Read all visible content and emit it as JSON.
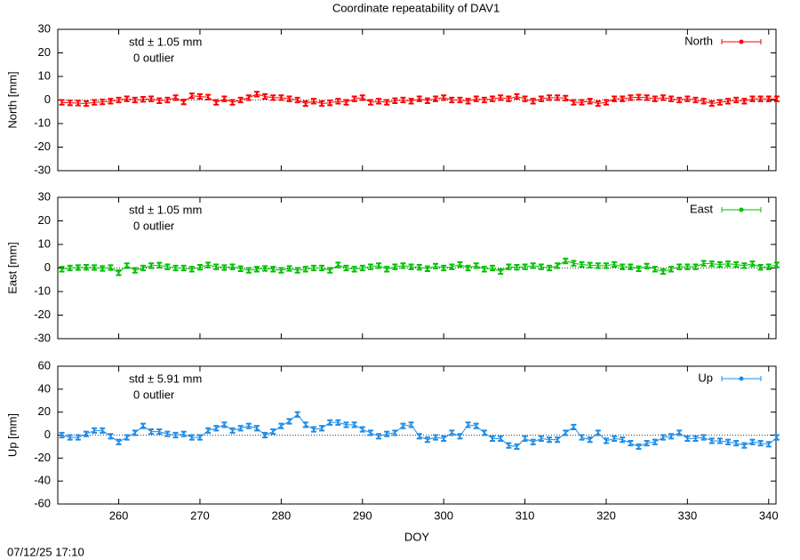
{
  "title": "Coordinate repeatability of DAV1",
  "timestamp": "07/12/25 17:10",
  "chart_data": [
    {
      "type": "line",
      "ylabel": "North [mm]",
      "std_text": "std ± 1.05 mm",
      "outlier_text": "0 outlier",
      "xlim": [
        252.5,
        340.9
      ],
      "xticks": [
        260,
        270,
        280,
        290,
        300,
        310,
        320,
        330,
        340
      ],
      "ylim": [
        -30,
        30
      ],
      "yticks": [
        -30,
        -20,
        -10,
        0,
        10,
        20,
        30
      ],
      "x": [
        253,
        254,
        255,
        256,
        257,
        258,
        259,
        260,
        261,
        262,
        263,
        264,
        265,
        266,
        267,
        268,
        269,
        270,
        271,
        272,
        273,
        274,
        275,
        276,
        277,
        278,
        279,
        280,
        281,
        282,
        283,
        284,
        285,
        286,
        287,
        288,
        289,
        290,
        291,
        292,
        293,
        294,
        295,
        296,
        297,
        298,
        299,
        300,
        301,
        302,
        303,
        304,
        305,
        306,
        307,
        308,
        309,
        310,
        311,
        312,
        313,
        314,
        315,
        316,
        317,
        318,
        319,
        320,
        321,
        322,
        323,
        324,
        325,
        326,
        327,
        328,
        329,
        330,
        331,
        332,
        333,
        334,
        335,
        336,
        337,
        338,
        339,
        340,
        341
      ],
      "series": [
        {
          "name": "North",
          "color": "#ff0000",
          "values": [
            -1,
            -1.2,
            -1.3,
            -1.5,
            -1,
            -0.8,
            -0.5,
            0,
            0.5,
            0,
            0.3,
            0.5,
            -0.3,
            0,
            1,
            -0.8,
            1.8,
            1.5,
            1.2,
            -1,
            0.5,
            -1,
            0,
            1,
            2.5,
            1.5,
            1,
            1,
            0.5,
            0,
            -1.5,
            -0.5,
            -1.5,
            -1.2,
            -0.5,
            -1,
            0.5,
            1,
            -1,
            -0.5,
            -1,
            -0.3,
            0,
            -0.5,
            0.5,
            -0.3,
            0.5,
            1,
            0,
            0,
            -0.5,
            0.5,
            0,
            0.5,
            1,
            0.5,
            1.5,
            0.5,
            -0.5,
            0.5,
            1,
            1,
            0.8,
            -1,
            -1,
            -0.5,
            -1.5,
            -1,
            0.5,
            0.5,
            1,
            1.2,
            1,
            0.5,
            1,
            0.5,
            0,
            0.5,
            0,
            -0.5,
            -1.5,
            -1,
            -0.5,
            0,
            -0.5,
            0.5,
            0.5,
            0.5,
            0.5
          ],
          "errors": [
            1,
            1,
            1,
            1,
            1,
            1,
            1,
            1,
            1,
            1,
            1,
            1,
            1,
            1,
            1,
            1,
            1,
            1,
            1,
            1,
            1,
            1,
            1,
            1,
            1,
            1,
            1,
            1,
            1,
            1,
            1,
            1,
            1,
            1,
            1,
            1,
            1,
            1,
            1,
            1,
            1,
            1,
            1,
            1,
            1,
            1,
            1,
            1,
            1,
            1,
            1,
            1,
            1,
            1,
            1,
            1,
            1,
            1,
            1,
            1,
            1,
            1,
            1,
            1,
            1,
            1,
            1,
            1,
            1,
            1,
            1,
            1,
            1,
            1,
            1,
            1,
            1,
            1,
            1,
            1,
            1,
            1,
            1,
            1,
            1,
            1,
            1,
            1,
            1
          ]
        }
      ]
    },
    {
      "type": "line",
      "ylabel": "East [mm]",
      "std_text": "std ± 1.05 mm",
      "outlier_text": "0 outlier",
      "xlim": [
        252.5,
        340.9
      ],
      "xticks": [
        260,
        270,
        280,
        290,
        300,
        310,
        320,
        330,
        340
      ],
      "ylim": [
        -30,
        30
      ],
      "yticks": [
        -30,
        -20,
        -10,
        0,
        10,
        20,
        30
      ],
      "x": [
        253,
        254,
        255,
        256,
        257,
        258,
        259,
        260,
        261,
        262,
        263,
        264,
        265,
        266,
        267,
        268,
        269,
        270,
        271,
        272,
        273,
        274,
        275,
        276,
        277,
        278,
        279,
        280,
        281,
        282,
        283,
        284,
        285,
        286,
        287,
        288,
        289,
        290,
        291,
        292,
        293,
        294,
        295,
        296,
        297,
        298,
        299,
        300,
        301,
        302,
        303,
        304,
        305,
        306,
        307,
        308,
        309,
        310,
        311,
        312,
        313,
        314,
        315,
        316,
        317,
        318,
        319,
        320,
        321,
        322,
        323,
        324,
        325,
        326,
        327,
        328,
        329,
        330,
        331,
        332,
        333,
        334,
        335,
        336,
        337,
        338,
        339,
        340,
        341
      ],
      "series": [
        {
          "name": "East",
          "color": "#00c000",
          "values": [
            -0.5,
            0,
            0.2,
            0.3,
            0.2,
            -0.2,
            0.2,
            -2,
            1,
            -1,
            0,
            1,
            1.2,
            0.5,
            0,
            0,
            -0.5,
            0.3,
            1.3,
            0.5,
            0.2,
            0.5,
            -0.3,
            -1,
            -0.5,
            -0.2,
            -0.5,
            -1,
            -0.2,
            -1,
            -0.5,
            0,
            0,
            -1,
            1.3,
            0,
            -0.5,
            0,
            0.5,
            1,
            -0.5,
            0.5,
            1,
            0.5,
            0.3,
            -0.3,
            0.8,
            0,
            0.5,
            1.5,
            0,
            1,
            -0.5,
            0,
            -1.5,
            0.5,
            0.3,
            0.5,
            1,
            0.5,
            0,
            1,
            3,
            2,
            1.5,
            1.2,
            1,
            1,
            1.5,
            0.5,
            0.5,
            -0.3,
            0.8,
            -0.5,
            -1.5,
            -0.5,
            0.5,
            0.5,
            0.5,
            2,
            1.8,
            1.5,
            1.8,
            1.5,
            1,
            1.8,
            0.3,
            0.5,
            1.3
          ],
          "errors": [
            1,
            1,
            1,
            1,
            1,
            1,
            1,
            1,
            1,
            1,
            1,
            1,
            1,
            1,
            1,
            1,
            1,
            1,
            1,
            1,
            1,
            1,
            1,
            1,
            1,
            1,
            1,
            1,
            1,
            1,
            1,
            1,
            1,
            1,
            1,
            1,
            1,
            1,
            1,
            1,
            1,
            1,
            1,
            1,
            1,
            1,
            1,
            1,
            1,
            1,
            1,
            1,
            1,
            1,
            1,
            1,
            1,
            1,
            1,
            1,
            1,
            1,
            1,
            1,
            1,
            1,
            1,
            1,
            1,
            1,
            1,
            1,
            1,
            1,
            1,
            1,
            1,
            1,
            1,
            1,
            1,
            1,
            1,
            1,
            1,
            1,
            1,
            1,
            1
          ]
        }
      ]
    },
    {
      "type": "line",
      "ylabel": "Up [mm]",
      "std_text": "std ± 5.91 mm",
      "outlier_text": "0 outlier",
      "xlabel": "DOY",
      "xlim": [
        252.5,
        340.9
      ],
      "xticks": [
        260,
        270,
        280,
        290,
        300,
        310,
        320,
        330,
        340
      ],
      "ylim": [
        -60,
        60
      ],
      "yticks": [
        -60,
        -40,
        -20,
        0,
        20,
        40,
        60
      ],
      "x": [
        253,
        254,
        255,
        256,
        257,
        258,
        259,
        260,
        261,
        262,
        263,
        264,
        265,
        266,
        267,
        268,
        269,
        270,
        271,
        272,
        273,
        274,
        275,
        276,
        277,
        278,
        279,
        280,
        281,
        282,
        283,
        284,
        285,
        286,
        287,
        288,
        289,
        290,
        291,
        292,
        293,
        294,
        295,
        296,
        297,
        298,
        299,
        300,
        301,
        302,
        303,
        304,
        305,
        306,
        307,
        308,
        309,
        310,
        311,
        312,
        313,
        314,
        315,
        316,
        317,
        318,
        319,
        320,
        321,
        322,
        323,
        324,
        325,
        326,
        327,
        328,
        329,
        330,
        331,
        332,
        333,
        334,
        335,
        336,
        337,
        338,
        339,
        340,
        341
      ],
      "series": [
        {
          "name": "Up",
          "color": "#1e8ce6",
          "values": [
            0,
            -2,
            -2,
            1,
            4,
            4,
            -1,
            -6,
            -2,
            2,
            8,
            3,
            3,
            1,
            0,
            1,
            -2,
            -2,
            4,
            6,
            9,
            4,
            6,
            8,
            6,
            0,
            3,
            8,
            12,
            18,
            9,
            5,
            6,
            11,
            11,
            9,
            9,
            5,
            2,
            -1,
            1,
            2,
            8,
            9,
            -1,
            -4,
            -2,
            -3,
            2,
            -1,
            9,
            8,
            2,
            -3,
            -3,
            -9,
            -10,
            -3,
            -6,
            -3,
            -4,
            -4,
            2,
            7,
            -2,
            -4,
            2,
            -5,
            -3,
            -4,
            -7,
            -10,
            -7,
            -6,
            -2,
            -1,
            2,
            -3,
            -3,
            -2,
            -5,
            -5,
            -6,
            -7,
            -9,
            -6,
            -7,
            -8,
            -2
          ],
          "errors": [
            2,
            2,
            2,
            2,
            2,
            2,
            2,
            2,
            2,
            2,
            2,
            2,
            2,
            2,
            2,
            2,
            2,
            2,
            2,
            2,
            2,
            2,
            2,
            2,
            2,
            2,
            2,
            2,
            2,
            2,
            2,
            2,
            2,
            2,
            2,
            2,
            2,
            2,
            2,
            2,
            2,
            2,
            2,
            2,
            2,
            2,
            2,
            2,
            2,
            2,
            2,
            2,
            2,
            2,
            2,
            2,
            2,
            2,
            2,
            2,
            2,
            2,
            2,
            2,
            2,
            2,
            2,
            2,
            2,
            2,
            2,
            2,
            2,
            2,
            2,
            2,
            2,
            2,
            2,
            2,
            2,
            2,
            2,
            2,
            2,
            2,
            2,
            2,
            2
          ]
        }
      ]
    }
  ]
}
